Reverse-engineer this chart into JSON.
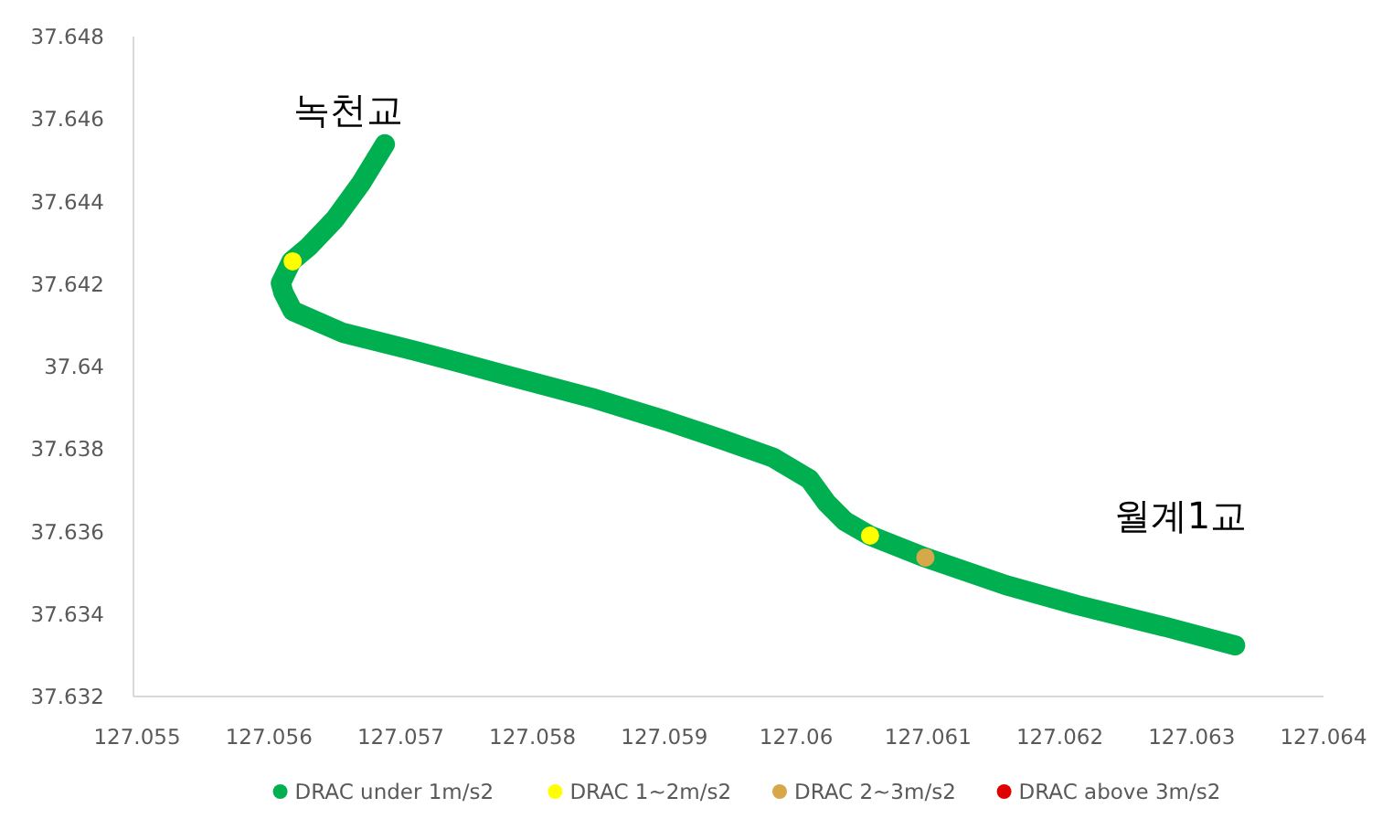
{
  "chart_data": {
    "type": "scatter",
    "xlim": [
      127.055,
      127.064
    ],
    "xticks": [
      127.055,
      127.056,
      127.057,
      127.058,
      127.059,
      127.06,
      127.061,
      127.062,
      127.063,
      127.064
    ],
    "ylim": [
      37.632,
      37.648
    ],
    "yticks": [
      37.632,
      37.634,
      37.636,
      37.638,
      37.64,
      37.642,
      37.644,
      37.646,
      37.648
    ],
    "grid": false,
    "legend": "bottom",
    "marker": "circle",
    "annotations": [
      "녹천교",
      "월계1교"
    ],
    "series": [
      {
        "name": "DRAC under 1m/s2",
        "type": "line",
        "color": "#00b050",
        "x": [
          127.05688,
          127.0567,
          127.0565,
          127.0563,
          127.05617,
          127.05609,
          127.05611,
          127.05618,
          127.05656,
          127.05711,
          127.05779,
          127.05847,
          127.05901,
          127.05942,
          127.05982,
          127.0601,
          127.06023,
          127.06037,
          127.06056,
          127.06098,
          127.06159,
          127.06213,
          127.06281,
          127.06333
        ],
        "values": [
          37.64539,
          37.64445,
          37.64357,
          37.6429,
          37.64255,
          37.64202,
          37.64179,
          37.64135,
          37.64082,
          37.64038,
          37.6398,
          37.63922,
          37.63869,
          37.63825,
          37.6378,
          37.63727,
          37.6367,
          37.63625,
          37.6359,
          37.63537,
          37.6347,
          37.63422,
          37.63368,
          37.63324
        ]
      },
      {
        "name": "DRAC 1~2m/s2",
        "color": "#ffff00",
        "x": [
          127.05618,
          127.06056
        ],
        "values": [
          37.64255,
          37.6359
        ]
      },
      {
        "name": "DRAC 2~3m/s2",
        "color": "#d6a84a",
        "x": [
          127.06098
        ],
        "values": [
          37.63537
        ]
      },
      {
        "name": "DRAC above 3m/s2",
        "color": "#e00000"
      }
    ]
  }
}
